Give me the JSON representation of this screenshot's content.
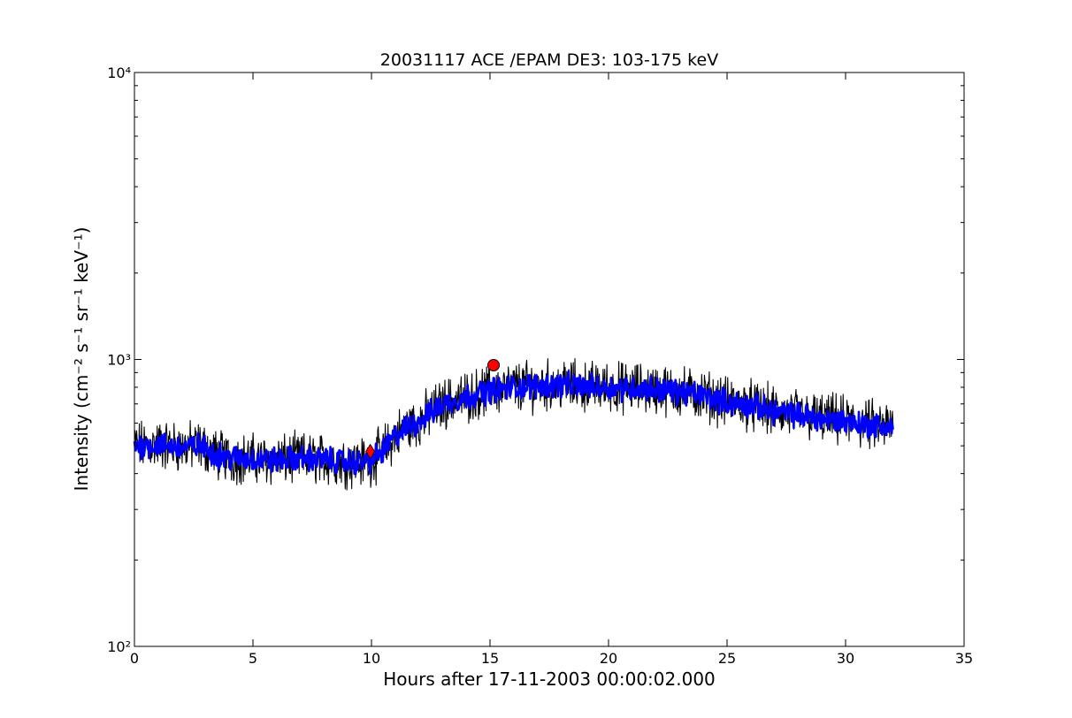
{
  "chart_data": {
    "type": "line",
    "title": "20031117 ACE /EPAM DE3: 103-175 keV",
    "xlabel": "Hours after 17-11-2003 00:00:02.000",
    "ylabel": "Intensity (cm⁻² s⁻¹ sr⁻¹ keV⁻¹)",
    "xlim": [
      0,
      35
    ],
    "ylim": [
      100,
      10000
    ],
    "yscale": "log",
    "x_ticks": [
      0,
      5,
      10,
      15,
      20,
      25,
      30,
      35
    ],
    "x_tick_labels": [
      "0",
      "5",
      "10",
      "15",
      "20",
      "25",
      "30",
      "35"
    ],
    "y_ticks": [
      100,
      1000,
      10000
    ],
    "y_tick_labels": [
      "10²",
      "10³",
      "10⁴"
    ],
    "grid": false,
    "series": [
      {
        "style": "black-noisy-line",
        "color": "#000000",
        "noise_amplitude": 0.07,
        "envelope_x": [
          0,
          1,
          2,
          2.8,
          3.5,
          4,
          5,
          6,
          7,
          8,
          9,
          9.5,
          10,
          10.5,
          11,
          11.5,
          12,
          12.5,
          13,
          14,
          15,
          16,
          17,
          18,
          19,
          20,
          21,
          22,
          23,
          24,
          25,
          26,
          27,
          28,
          29,
          30,
          31,
          32
        ],
        "envelope_y": [
          500,
          505,
          495,
          500,
          465,
          455,
          450,
          445,
          452,
          448,
          440,
          438,
          445,
          480,
          540,
          580,
          610,
          650,
          700,
          740,
          780,
          800,
          810,
          815,
          805,
          800,
          795,
          790,
          770,
          750,
          710,
          690,
          660,
          640,
          620,
          610,
          590,
          580
        ]
      },
      {
        "style": "blue-smoothed-line",
        "color": "#0000ff",
        "noise_amplitude": 0.035,
        "envelope_x": [
          0,
          1,
          2,
          2.8,
          3.5,
          4,
          5,
          6,
          7,
          8,
          9,
          9.5,
          10,
          10.5,
          11,
          11.5,
          12,
          12.5,
          13,
          14,
          15,
          16,
          17,
          18,
          19,
          20,
          21,
          22,
          23,
          24,
          25,
          26,
          27,
          28,
          29,
          30,
          31,
          32
        ],
        "envelope_y": [
          500,
          505,
          495,
          500,
          465,
          455,
          450,
          445,
          452,
          448,
          440,
          438,
          445,
          480,
          540,
          580,
          610,
          650,
          700,
          740,
          780,
          800,
          810,
          815,
          805,
          800,
          795,
          790,
          770,
          750,
          710,
          690,
          660,
          640,
          620,
          610,
          590,
          580
        ]
      }
    ],
    "markers": [
      {
        "shape": "diamond",
        "x": 9.95,
        "y": 478,
        "color": "#ff0000"
      },
      {
        "shape": "circle",
        "x": 15.15,
        "y": 955,
        "color": "#ff0000"
      }
    ]
  }
}
